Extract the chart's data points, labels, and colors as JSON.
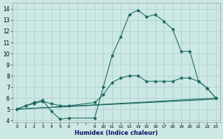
{
  "xlabel": "Humidex (Indice chaleur)",
  "bg_color": "#cce8e4",
  "grid_color": "#aaccc8",
  "line_color": "#1a6a60",
  "xlim": [
    -0.5,
    23.5
  ],
  "ylim": [
    3.8,
    14.55
  ],
  "xticks": [
    0,
    1,
    2,
    3,
    4,
    5,
    6,
    9,
    10,
    11,
    12,
    13,
    14,
    15,
    16,
    17,
    18,
    19,
    20,
    21,
    22,
    23
  ],
  "yticks": [
    4,
    5,
    6,
    7,
    8,
    9,
    10,
    11,
    12,
    13,
    14
  ],
  "line1_x": [
    0,
    1,
    2,
    3,
    4,
    5,
    6,
    9,
    10,
    11,
    12,
    13,
    14,
    15,
    16,
    17,
    18,
    19,
    20,
    21,
    22,
    23
  ],
  "line1_y": [
    5.0,
    5.3,
    5.6,
    5.8,
    4.8,
    4.1,
    4.2,
    4.2,
    7.0,
    9.8,
    11.5,
    13.5,
    13.9,
    13.3,
    13.5,
    12.9,
    12.2,
    10.2,
    10.2,
    7.5,
    6.9,
    6.0
  ],
  "line2_x": [
    0,
    1,
    2,
    3,
    4,
    5,
    6,
    9,
    10,
    11,
    12,
    13,
    14,
    15,
    16,
    17,
    18,
    19,
    20,
    21,
    22,
    23
  ],
  "line2_y": [
    5.0,
    5.3,
    5.5,
    5.7,
    5.5,
    5.3,
    5.3,
    5.6,
    6.3,
    7.4,
    7.8,
    8.0,
    8.0,
    7.5,
    7.5,
    7.5,
    7.5,
    7.8,
    7.8,
    7.5,
    6.9,
    6.0
  ],
  "line3_x": [
    0,
    23
  ],
  "line3_y": [
    5.0,
    6.0
  ],
  "line4_x": [
    0,
    23
  ],
  "line4_y": [
    5.0,
    5.9
  ]
}
